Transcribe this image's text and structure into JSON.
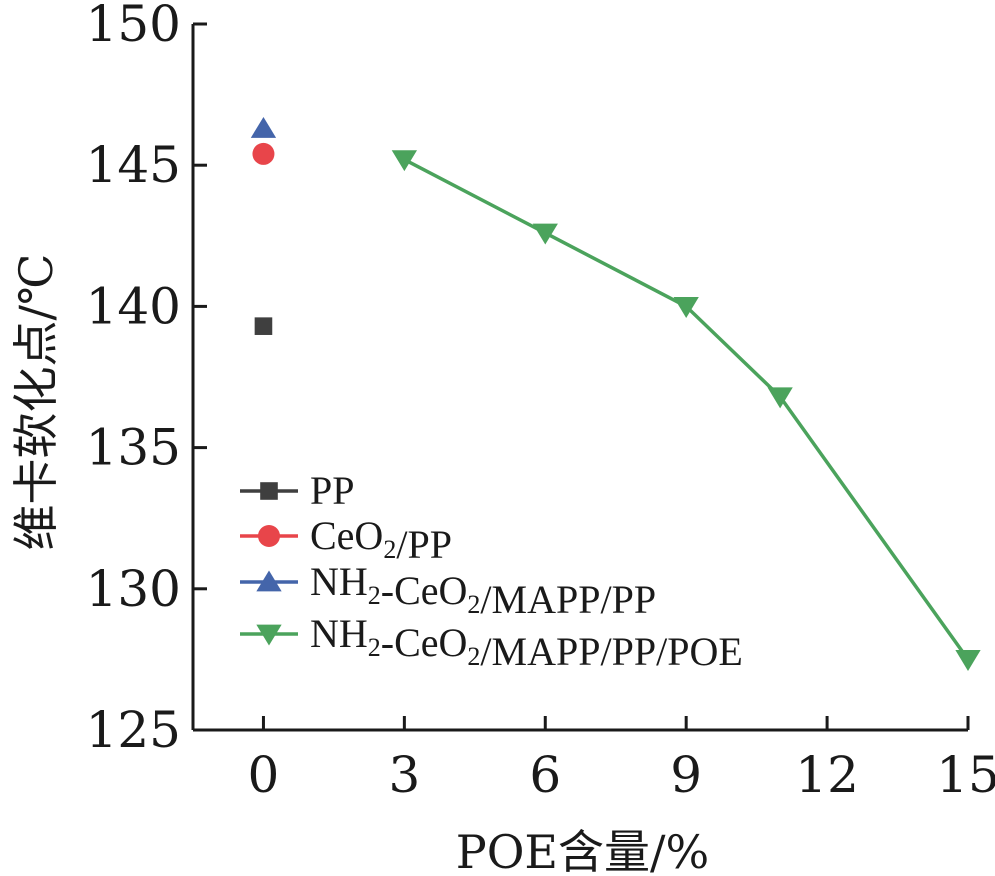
{
  "chart_data": {
    "type": "line",
    "xlabel": "POE含量/%",
    "ylabel": "维卡软化点/℃",
    "xlim": [
      -1.5,
      15
    ],
    "ylim": [
      125,
      150
    ],
    "x_ticks": [
      0,
      3,
      6,
      9,
      12,
      15
    ],
    "y_ticks": [
      125,
      130,
      135,
      140,
      145,
      150
    ],
    "x_tick_labels": [
      "0",
      "3",
      "6",
      "9",
      "12",
      "15"
    ],
    "y_tick_labels": [
      "125",
      "130",
      "135",
      "140",
      "145",
      "150"
    ],
    "grid": false,
    "legend_position": "bottom-left",
    "series": [
      {
        "name": "PP",
        "legend_parts": [
          {
            "t": "PP",
            "sub": false
          }
        ],
        "marker": "square",
        "color": "#3f3f3f",
        "x": [
          0
        ],
        "y": [
          139.3
        ]
      },
      {
        "name": "CeO2/PP",
        "legend_parts": [
          {
            "t": "CeO",
            "sub": false
          },
          {
            "t": "2",
            "sub": true
          },
          {
            "t": "/PP",
            "sub": false
          }
        ],
        "marker": "circle",
        "color": "#e8454a",
        "x": [
          0
        ],
        "y": [
          145.4
        ]
      },
      {
        "name": "NH2-CeO2/MAPP/PP",
        "legend_parts": [
          {
            "t": "NH",
            "sub": false
          },
          {
            "t": "2",
            "sub": true
          },
          {
            "t": "-CeO",
            "sub": false
          },
          {
            "t": "2",
            "sub": true
          },
          {
            "t": "/MAPP/PP",
            "sub": false
          }
        ],
        "marker": "triangle-up",
        "color": "#4465aa",
        "x": [
          0
        ],
        "y": [
          146.3
        ]
      },
      {
        "name": "NH2-CeO2/MAPP/PP/POE",
        "legend_parts": [
          {
            "t": "NH",
            "sub": false
          },
          {
            "t": "2",
            "sub": true
          },
          {
            "t": "-CeO",
            "sub": false
          },
          {
            "t": "2",
            "sub": true
          },
          {
            "t": "/MAPP/PP/POE",
            "sub": false
          }
        ],
        "marker": "triangle-down",
        "color": "#4ba35c",
        "x": [
          3,
          6,
          9,
          11,
          15
        ],
        "y": [
          145.2,
          142.6,
          140.0,
          136.8,
          127.5
        ]
      }
    ]
  }
}
